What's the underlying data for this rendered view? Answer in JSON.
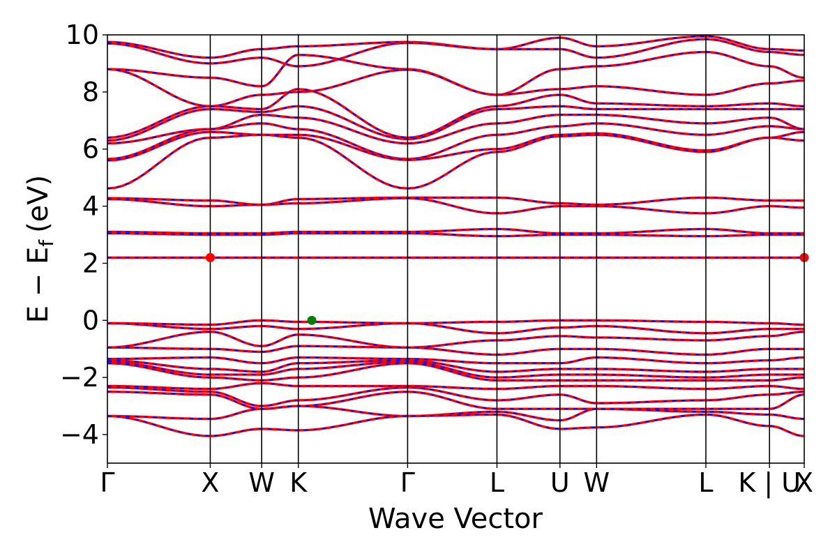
{
  "chart_data": {
    "type": "line",
    "xlabel": "Wave Vector",
    "ylabel_main": "E − E",
    "ylabel_sub": "f",
    "ylabel_unit": "(eV)",
    "ylim": [
      -5,
      10
    ],
    "yticks": [
      {
        "value": 10,
        "label": "10"
      },
      {
        "value": 8,
        "label": "8"
      },
      {
        "value": 6,
        "label": "6"
      },
      {
        "value": 4,
        "label": "4"
      },
      {
        "value": 2,
        "label": "2"
      },
      {
        "value": 0,
        "label": "0"
      },
      {
        "value": -2,
        "label": "−2"
      },
      {
        "value": -4,
        "label": "−4"
      }
    ],
    "xlim": [
      0,
      10.84
    ],
    "kpoints": [
      {
        "label": "Γ",
        "x": 0.0
      },
      {
        "label": "X",
        "x": 1.6
      },
      {
        "label": "W",
        "x": 2.4
      },
      {
        "label": "K",
        "x": 2.97
      },
      {
        "label": "Γ",
        "x": 4.67
      },
      {
        "label": "L",
        "x": 6.06
      },
      {
        "label": "U",
        "x": 7.04
      },
      {
        "label": "W",
        "x": 7.61
      },
      {
        "label": "L",
        "x": 9.31
      },
      {
        "label": "K | U",
        "x": 10.3
      },
      {
        "label": "X",
        "x": 10.84
      }
    ],
    "series_colors": {
      "spin_up": "#ff0000",
      "spin_down": "#0000ff"
    },
    "markers": [
      {
        "x": 1.6,
        "y": 2.2,
        "color": "#ff0000",
        "role": "conduction band minimum"
      },
      {
        "x": 10.84,
        "y": 2.2,
        "color": "#ff0000",
        "role": "conduction band minimum"
      },
      {
        "x": 3.18,
        "y": 0.0,
        "color": "#008000",
        "role": "valence band maximum"
      }
    ],
    "bands": [
      {
        "y": [
          9.75,
          9.2,
          9.5,
          9.6,
          9.75,
          9.5,
          9.9,
          9.6,
          9.95,
          9.5,
          9.45
        ]
      },
      {
        "y": [
          9.7,
          9.0,
          9.2,
          8.9,
          9.72,
          9.5,
          9.5,
          9.2,
          9.85,
          9.4,
          9.3
        ]
      },
      {
        "y": [
          8.8,
          8.5,
          8.2,
          9.3,
          8.8,
          7.9,
          8.8,
          8.9,
          9.4,
          8.9,
          8.5
        ]
      },
      {
        "y": [
          8.8,
          7.5,
          7.9,
          8.0,
          8.78,
          7.9,
          8.1,
          8.2,
          7.9,
          8.3,
          8.4
        ]
      },
      {
        "y": [
          6.4,
          7.5,
          7.4,
          8.1,
          6.4,
          7.5,
          7.9,
          7.6,
          7.5,
          7.6,
          7.5
        ]
      },
      {
        "y": [
          6.3,
          7.4,
          7.3,
          7.5,
          6.35,
          7.4,
          7.5,
          7.4,
          7.4,
          7.4,
          7.4
        ]
      },
      {
        "y": [
          6.2,
          6.7,
          7.2,
          7.1,
          6.2,
          6.9,
          7.2,
          7.2,
          6.9,
          7.1,
          6.7
        ]
      },
      {
        "y": [
          5.65,
          6.7,
          6.9,
          6.7,
          5.65,
          6.5,
          6.8,
          6.9,
          6.5,
          6.8,
          6.7
        ]
      },
      {
        "y": [
          5.6,
          6.6,
          6.5,
          6.5,
          5.62,
          6.0,
          6.5,
          6.55,
          5.95,
          6.4,
          6.6
        ]
      },
      {
        "y": [
          4.62,
          6.4,
          6.5,
          6.4,
          4.62,
          5.9,
          6.45,
          6.5,
          5.9,
          6.4,
          6.3
        ]
      },
      {
        "y": [
          4.28,
          4.2,
          4.05,
          4.25,
          4.3,
          4.3,
          4.1,
          4.05,
          4.3,
          4.2,
          4.2
        ]
      },
      {
        "y": [
          4.25,
          4.0,
          4.05,
          4.1,
          4.28,
          3.75,
          4.0,
          4.0,
          3.75,
          4.0,
          3.95
        ]
      },
      {
        "y": [
          3.1,
          3.05,
          3.05,
          3.1,
          3.1,
          3.2,
          3.05,
          3.05,
          3.2,
          3.05,
          3.05
        ]
      },
      {
        "y": [
          3.05,
          3.0,
          3.0,
          3.05,
          3.05,
          2.95,
          3.0,
          3.0,
          2.95,
          3.0,
          3.0
        ]
      },
      {
        "y": [
          2.2,
          2.2,
          2.2,
          2.2,
          2.2,
          2.2,
          2.2,
          2.2,
          2.2,
          2.2,
          2.2
        ]
      },
      {
        "y": [
          -0.1,
          -0.15,
          0.0,
          -0.05,
          -0.1,
          -0.05,
          0.0,
          0.0,
          -0.05,
          -0.1,
          -0.15
        ]
      },
      {
        "y": [
          -0.1,
          -0.3,
          -0.2,
          -0.3,
          -0.1,
          -0.45,
          -0.25,
          -0.2,
          -0.45,
          -0.3,
          -0.3
        ]
      },
      {
        "y": [
          -0.95,
          -0.4,
          -0.9,
          -0.5,
          -0.95,
          -0.7,
          -0.55,
          -0.6,
          -0.7,
          -0.55,
          -0.4
        ]
      },
      {
        "y": [
          -0.95,
          -1.0,
          -1.1,
          -0.9,
          -0.95,
          -1.2,
          -1.0,
          -1.0,
          -1.2,
          -1.0,
          -1.0
        ]
      },
      {
        "y": [
          -1.35,
          -1.3,
          -1.5,
          -1.3,
          -1.35,
          -1.5,
          -1.5,
          -1.3,
          -1.5,
          -1.4,
          -1.3
        ]
      },
      {
        "y": [
          -1.4,
          -1.7,
          -1.8,
          -1.5,
          -1.4,
          -1.8,
          -1.7,
          -1.7,
          -1.8,
          -1.7,
          -1.7
        ]
      },
      {
        "y": [
          -1.45,
          -1.9,
          -1.9,
          -1.7,
          -1.45,
          -2.0,
          -1.9,
          -1.9,
          -2.0,
          -1.9,
          -1.9
        ]
      },
      {
        "y": [
          -1.5,
          -2.0,
          -2.1,
          -2.0,
          -1.5,
          -2.1,
          -2.1,
          -2.1,
          -2.1,
          -2.1,
          -2.0
        ]
      },
      {
        "y": [
          -2.3,
          -2.4,
          -2.2,
          -2.3,
          -2.3,
          -2.4,
          -2.3,
          -2.3,
          -2.4,
          -2.3,
          -2.4
        ]
      },
      {
        "y": [
          -2.35,
          -2.5,
          -3.0,
          -2.8,
          -2.35,
          -2.8,
          -2.6,
          -2.9,
          -2.8,
          -2.6,
          -2.5
        ]
      },
      {
        "y": [
          -2.5,
          -2.6,
          -3.1,
          -3.0,
          -2.5,
          -3.1,
          -3.1,
          -3.1,
          -3.1,
          -3.1,
          -2.6
        ]
      },
      {
        "y": [
          -3.35,
          -3.45,
          -3.1,
          -3.0,
          -3.35,
          -3.2,
          -3.5,
          -3.1,
          -3.2,
          -3.3,
          -3.45
        ]
      },
      {
        "y": [
          -3.35,
          -4.05,
          -3.8,
          -3.85,
          -3.35,
          -3.3,
          -3.8,
          -3.75,
          -3.3,
          -3.7,
          -4.05
        ]
      }
    ]
  }
}
